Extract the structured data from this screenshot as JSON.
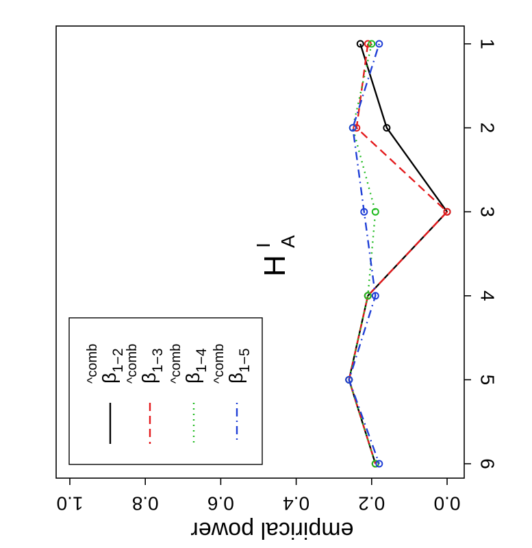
{
  "chart_data": {
    "type": "line",
    "orientation": "rotated 90 degrees clockwise (x axis runs top-to-bottom on the right, y axis reversed along the bottom)",
    "title": "H",
    "title_sup": "I",
    "title_sub": "A",
    "xlabel": "",
    "ylabel": "empirical power",
    "x": [
      1,
      2,
      3,
      4,
      5,
      6
    ],
    "xticks": [
      "1",
      "2",
      "3",
      "4",
      "5",
      "6"
    ],
    "yticks": [
      "0.0",
      "0.2",
      "0.4",
      "0.6",
      "0.8",
      "1.0"
    ],
    "xlim": [
      1,
      6
    ],
    "ylim": [
      0,
      1
    ],
    "grid": false,
    "legend_position": "bottom-left of the rotated figure",
    "series": [
      {
        "name": "β",
        "label_sub": "1−2",
        "label_sup": "^comb",
        "color": "#000000",
        "dash": "solid",
        "values": [
          0.23,
          0.16,
          0.0,
          0.21,
          0.26,
          0.19
        ]
      },
      {
        "name": "β",
        "label_sub": "1−3",
        "label_sup": "^comb",
        "color": "#e31a1c",
        "dash": "dashed",
        "values": [
          0.21,
          0.24,
          0.0,
          0.21,
          0.26,
          0.19
        ]
      },
      {
        "name": "β",
        "label_sub": "1−4",
        "label_sup": "^comb",
        "color": "#22bb22",
        "dash": "dotted",
        "values": [
          0.2,
          0.25,
          0.19,
          0.21,
          0.26,
          0.19
        ]
      },
      {
        "name": "β",
        "label_sub": "1−5",
        "label_sup": "^comb",
        "color": "#1f3fd6",
        "dash": "dotdash",
        "values": [
          0.18,
          0.25,
          0.22,
          0.19,
          0.26,
          0.18
        ]
      }
    ]
  }
}
